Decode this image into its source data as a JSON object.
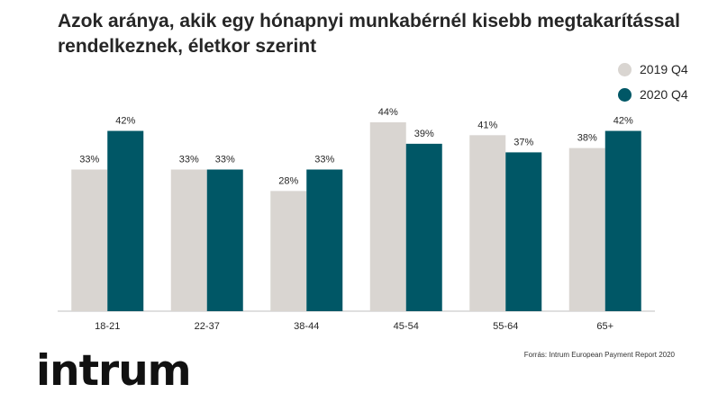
{
  "title": "Azok aránya, akik egy hónapnyi munkabérnél kisebb megtakarítással rendelkeznek, életkor szerint",
  "source": "Forrás: Intrum European Payment Report 2020",
  "logo_text": "intrum",
  "chart_data": {
    "type": "bar",
    "categories": [
      "18-21",
      "22-37",
      "38-44",
      "45-54",
      "55-64",
      "65+"
    ],
    "series": [
      {
        "name": "2019 Q4",
        "values": [
          33,
          33,
          28,
          44,
          41,
          38
        ],
        "color": "#d9d5d1"
      },
      {
        "name": "2020 Q4",
        "values": [
          42,
          33,
          33,
          39,
          37,
          42
        ],
        "color": "#005766"
      }
    ],
    "value_suffix": "%",
    "ylim": [
      0,
      44
    ],
    "legend_position": "top-right",
    "grid": false
  }
}
